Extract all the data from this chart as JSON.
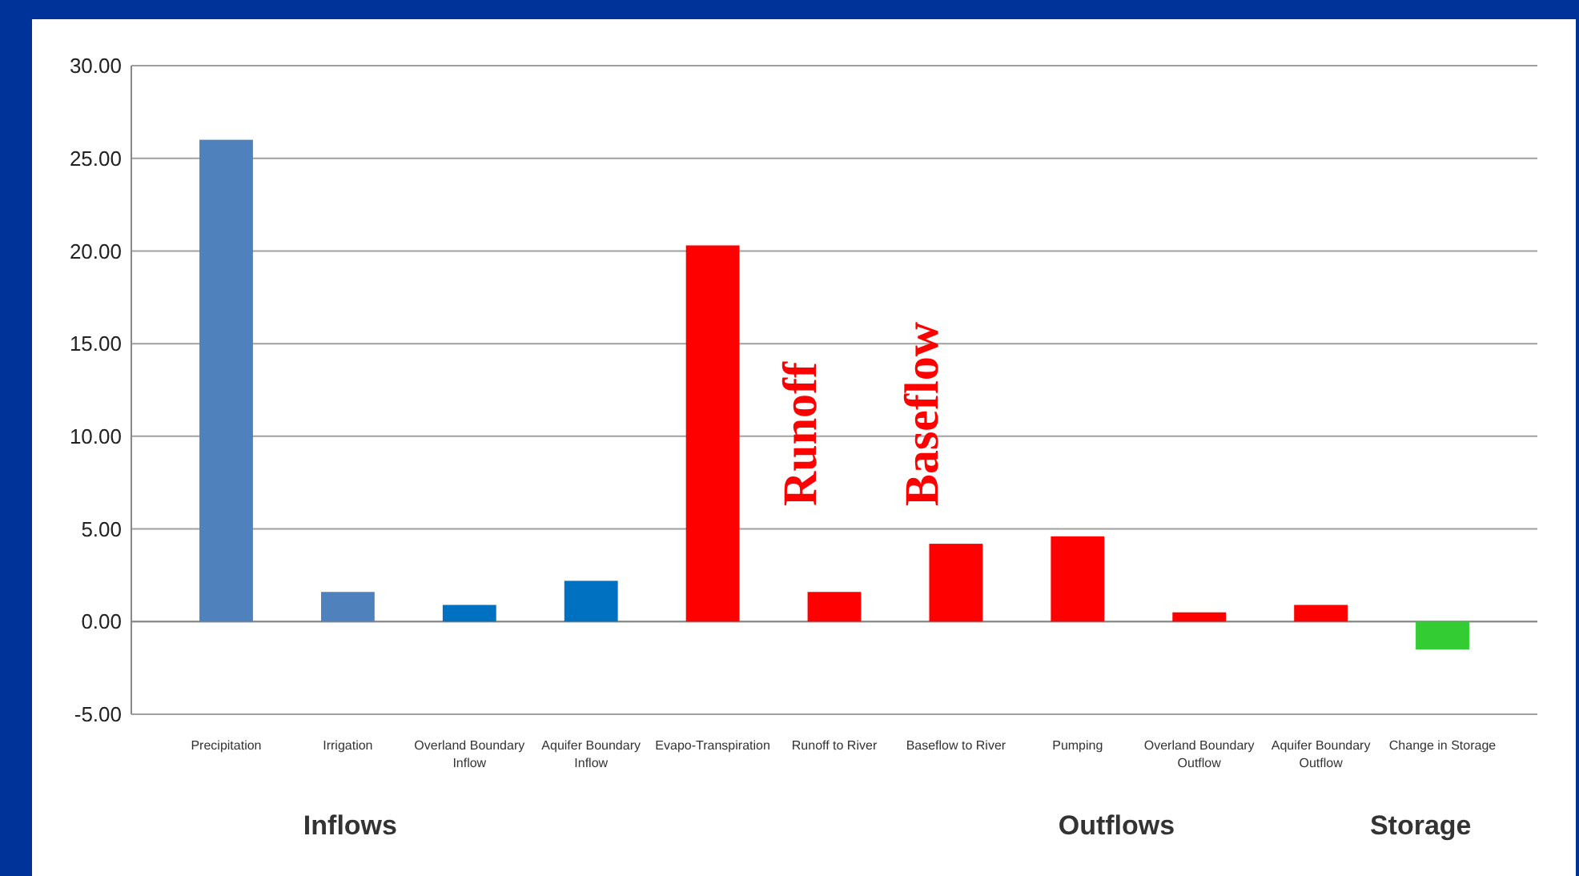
{
  "chart_data": {
    "type": "bar",
    "categories": [
      "Precipitation",
      "Irrigation",
      "Overland Boundary Inflow",
      "Aquifer Boundary Inflow",
      "Evapo-Transpiration",
      "Runoff to River",
      "Baseflow to River",
      "Pumping",
      "Overland Boundary Outflow",
      "Aquifer Boundary Outflow",
      "Change in Storage"
    ],
    "values": [
      26.0,
      1.6,
      0.9,
      2.2,
      20.3,
      1.6,
      4.2,
      4.6,
      0.5,
      0.9,
      -1.5
    ],
    "colors": [
      "#4f81bd",
      "#4f81bd",
      "#0070c0",
      "#0070c0",
      "#ff0000",
      "#ff0000",
      "#ff0000",
      "#ff0000",
      "#ff0000",
      "#ff0000",
      "#33cc33"
    ],
    "ylim": [
      -5,
      30
    ],
    "yticks": [
      {
        "value": -5,
        "label": "-5.00"
      },
      {
        "value": 0,
        "label": "0.00"
      },
      {
        "value": 5,
        "label": "5.00"
      },
      {
        "value": 10,
        "label": "10.00"
      },
      {
        "value": 15,
        "label": "15.00"
      },
      {
        "value": 20,
        "label": "20.00"
      },
      {
        "value": 25,
        "label": "25.00"
      },
      {
        "value": 30,
        "label": "30.00"
      }
    ],
    "grid": "y",
    "annotations": [
      "Runoff",
      "Baseflow",
      "Inflows",
      "Outflows",
      "Storage"
    ]
  }
}
